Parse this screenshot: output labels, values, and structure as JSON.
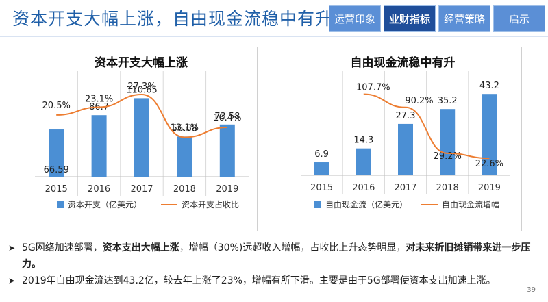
{
  "header": {
    "title": "资本开支大幅上涨，自由现金流稳中有升",
    "tabs": [
      {
        "label": "运营印象",
        "active": false
      },
      {
        "label": "业财指标",
        "active": true
      },
      {
        "label": "经营策略",
        "active": false
      },
      {
        "label": "启示",
        "active": false
      }
    ]
  },
  "chart_data": [
    {
      "type": "bar+line",
      "title": "资本开支大幅上涨",
      "categories": [
        "2015",
        "2016",
        "2017",
        "2018",
        "2019"
      ],
      "bar": {
        "name": "资本开支（亿美元）",
        "values": [
          66.59,
          86.7,
          110.65,
          56.68,
          73.58
        ],
        "labels": [
          "66.59",
          "86.7",
          "110.65",
          "56.68",
          "73.58"
        ],
        "color": "#4b8fd4",
        "ylim": [
          0,
          140
        ]
      },
      "line": {
        "name": "资本开支占收比",
        "values": [
          20.5,
          23.1,
          27.3,
          13.1,
          16.4
        ],
        "labels": [
          "20.5%",
          "23.1%",
          "27.3%",
          "13.1%",
          "16.4%"
        ],
        "color": "#ed7d31",
        "ylim": [
          0,
          33
        ]
      }
    },
    {
      "type": "bar+line",
      "title": "自由现金流稳中有升",
      "categories": [
        "2015",
        "2016",
        "2017",
        "2018",
        "2019"
      ],
      "bar": {
        "name": "自由现金流（亿美元）",
        "values": [
          6.9,
          14.3,
          27.3,
          35.2,
          43.2
        ],
        "labels": [
          "6.9",
          "14.3",
          "27.3",
          "35.2",
          "43.2"
        ],
        "color": "#4b8fd4",
        "ylim": [
          0,
          52
        ]
      },
      "line": {
        "name": "自由现金流增幅",
        "values": [
          null,
          107.7,
          90.2,
          29.2,
          22.6
        ],
        "labels": [
          "",
          "107.7%",
          "90.2%",
          "29.2%",
          "22.6%"
        ],
        "color": "#ed7d31",
        "ylim": [
          0,
          130
        ]
      }
    }
  ],
  "bullets": {
    "b1_a": "5G网络加速部署，",
    "b1_b": "资本支出大幅上涨",
    "b1_c": "，增幅（30%)远超收入增幅，占收比上升态势明显，",
    "b1_d": "对未来折旧摊销带来进一步压力。",
    "b2": "2019年自由现金流达到43.2亿，较去年上涨了23%，增幅有所下滑。主要是由于5G部署使资本支出加速上涨。"
  },
  "page_number": "39"
}
